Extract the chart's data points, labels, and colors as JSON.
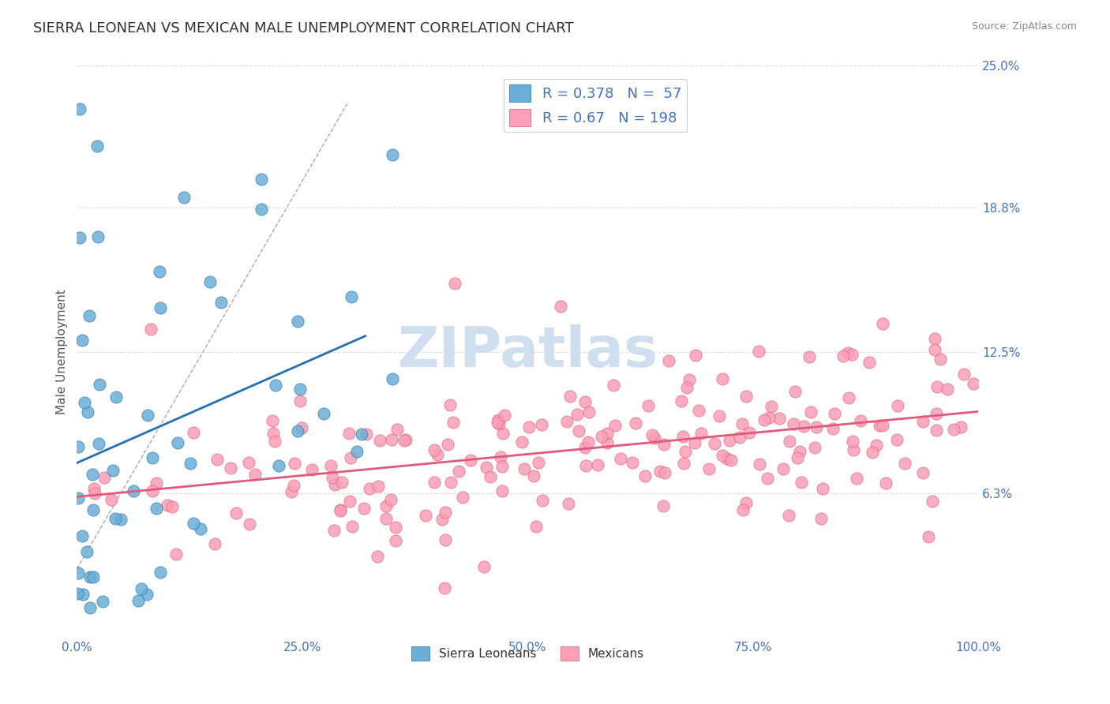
{
  "title": "SIERRA LEONEAN VS MEXICAN MALE UNEMPLOYMENT CORRELATION CHART",
  "source_text": "Source: ZipAtlas.com",
  "xlabel": "",
  "ylabel": "Male Unemployment",
  "xlim": [
    0.0,
    1.0
  ],
  "ylim": [
    0.0,
    0.25
  ],
  "yticks": [
    0.063,
    0.125,
    0.188,
    0.25
  ],
  "ytick_labels": [
    "6.3%",
    "12.5%",
    "18.8%",
    "25.0%"
  ],
  "xticks": [
    0.0,
    0.25,
    0.5,
    0.75,
    1.0
  ],
  "xtick_labels": [
    "0.0%",
    "25.0%",
    "50.0%",
    "75.0%",
    "100.0%"
  ],
  "sierra_R": 0.378,
  "sierra_N": 57,
  "mexican_R": 0.67,
  "mexican_N": 198,
  "sierra_color": "#6baed6",
  "mexican_color": "#fa9fb5",
  "sierra_trend_color": "#2171b5",
  "mexican_trend_color": "#e05a7a",
  "dashed_line_color": "#aaaaaa",
  "background_color": "#ffffff",
  "grid_color": "#dddddd",
  "watermark_text": "ZIPatlas",
  "watermark_color": "#d0dff0",
  "title_color": "#333333",
  "axis_label_color": "#555555",
  "tick_label_color": "#4472c4",
  "legend_R_color": "#4472c4",
  "title_fontsize": 13,
  "axis_label_fontsize": 11,
  "tick_label_fontsize": 11,
  "watermark_fontsize": 52,
  "seed": 42
}
